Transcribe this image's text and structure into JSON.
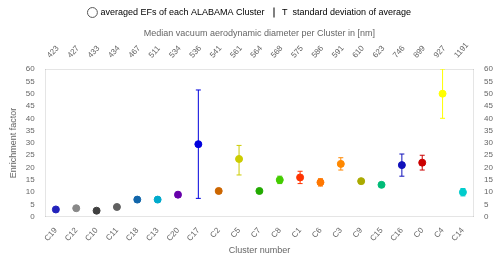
{
  "chart_data": {
    "type": "scatter",
    "title": "Median vacuum aerodynamic diameter per Cluster in [nm]",
    "xlabel": "Cluster number",
    "ylabel": "Enrichment factor",
    "categories": [
      "C19",
      "C12",
      "C10",
      "C11",
      "C18",
      "C13",
      "C20",
      "C17",
      "C2",
      "C5",
      "C7",
      "C8",
      "C1",
      "C6",
      "C3",
      "C9",
      "C15",
      "C16",
      "C0",
      "C4",
      "C14"
    ],
    "x2_categories": [
      "423",
      "427",
      "433",
      "434",
      "467",
      "511",
      "534",
      "536",
      "541",
      "561",
      "564",
      "568",
      "575",
      "586",
      "591",
      "610",
      "623",
      "746",
      "899",
      "927",
      "1191"
    ],
    "values": [
      3.0,
      3.5,
      2.5,
      4.0,
      7.0,
      7.0,
      9.0,
      29.5,
      10.5,
      23.5,
      10.5,
      15.0,
      16.0,
      14.0,
      21.5,
      14.5,
      13.0,
      21.0,
      22.0,
      50.0,
      10.0
    ],
    "err_low": [
      0.5,
      0.5,
      0.3,
      0.5,
      1.0,
      1.0,
      1.0,
      22.0,
      1.0,
      6.5,
      0.5,
      1.5,
      2.5,
      1.5,
      2.5,
      0.5,
      0.5,
      4.5,
      3.0,
      10.0,
      1.5
    ],
    "err_high": [
      0.5,
      0.5,
      0.3,
      0.5,
      1.0,
      1.0,
      1.0,
      22.0,
      1.0,
      5.5,
      0.5,
      1.5,
      2.5,
      1.5,
      2.5,
      0.5,
      0.5,
      4.5,
      3.0,
      10.0,
      1.5
    ],
    "colors": [
      "#2222bb",
      "#888888",
      "#404040",
      "#606060",
      "#1166aa",
      "#00aacc",
      "#6600aa",
      "#0000dd",
      "#cc6600",
      "#cccc00",
      "#22aa00",
      "#44cc00",
      "#ff3300",
      "#ff7700",
      "#ff8800",
      "#aaaa00",
      "#00bb77",
      "#1111bb",
      "#cc0000",
      "#ffff00",
      "#00cccc"
    ],
    "ylim": [
      0,
      60
    ],
    "yticks": [
      0,
      5,
      10,
      15,
      20,
      25,
      30,
      35,
      40,
      45,
      50,
      55,
      60
    ],
    "y2lim": [
      0,
      60
    ],
    "y2ticks": [
      0,
      5,
      10,
      15,
      20,
      25,
      30,
      35,
      40,
      45,
      50,
      55,
      60
    ],
    "legend_entries": [
      "averaged EFs of each ALABAMA Cluster",
      "T  standard deviation of average"
    ],
    "legend": "top",
    "grid": false
  }
}
